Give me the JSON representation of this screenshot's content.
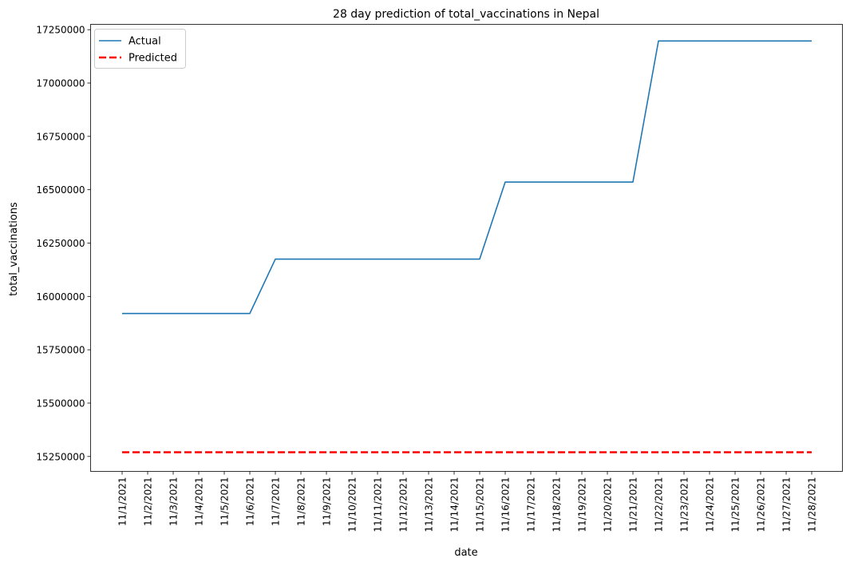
{
  "chart_data": {
    "type": "line",
    "title": "28 day prediction of total_vaccinations in Nepal",
    "xlabel": "date",
    "ylabel": "total_vaccinations",
    "x": [
      "11/1/2021",
      "11/2/2021",
      "11/3/2021",
      "11/4/2021",
      "11/5/2021",
      "11/6/2021",
      "11/7/2021",
      "11/8/2021",
      "11/9/2021",
      "11/10/2021",
      "11/11/2021",
      "11/12/2021",
      "11/13/2021",
      "11/14/2021",
      "11/15/2021",
      "11/16/2021",
      "11/17/2021",
      "11/18/2021",
      "11/19/2021",
      "11/20/2021",
      "11/21/2021",
      "11/22/2021",
      "11/23/2021",
      "11/24/2021",
      "11/25/2021",
      "11/26/2021",
      "11/27/2021",
      "11/28/2021"
    ],
    "yticks": [
      15250000,
      15500000,
      15750000,
      16000000,
      16250000,
      16500000,
      16750000,
      17000000,
      17250000
    ],
    "ylim": [
      15180000,
      17275000
    ],
    "legend_position": "top-left",
    "grid": false,
    "series": [
      {
        "name": "Actual",
        "color": "#1f77b4",
        "style": "solid",
        "values": [
          15920000,
          15920000,
          15920000,
          15920000,
          15920000,
          15920000,
          16175000,
          16175000,
          16175000,
          16175000,
          16175000,
          16175000,
          16175000,
          16175000,
          16175000,
          16536000,
          16536000,
          16536000,
          16536000,
          16536000,
          16536000,
          17197000,
          17197000,
          17197000,
          17197000,
          17197000,
          17197000,
          17197000
        ]
      },
      {
        "name": "Predicted",
        "color": "#ff0000",
        "style": "dashed",
        "values": [
          15270000,
          15270000,
          15270000,
          15270000,
          15270000,
          15270000,
          15270000,
          15270000,
          15270000,
          15270000,
          15270000,
          15270000,
          15270000,
          15270000,
          15270000,
          15270000,
          15270000,
          15270000,
          15270000,
          15270000,
          15270000,
          15270000,
          15270000,
          15270000,
          15270000,
          15270000,
          15270000,
          15270000
        ]
      }
    ]
  }
}
